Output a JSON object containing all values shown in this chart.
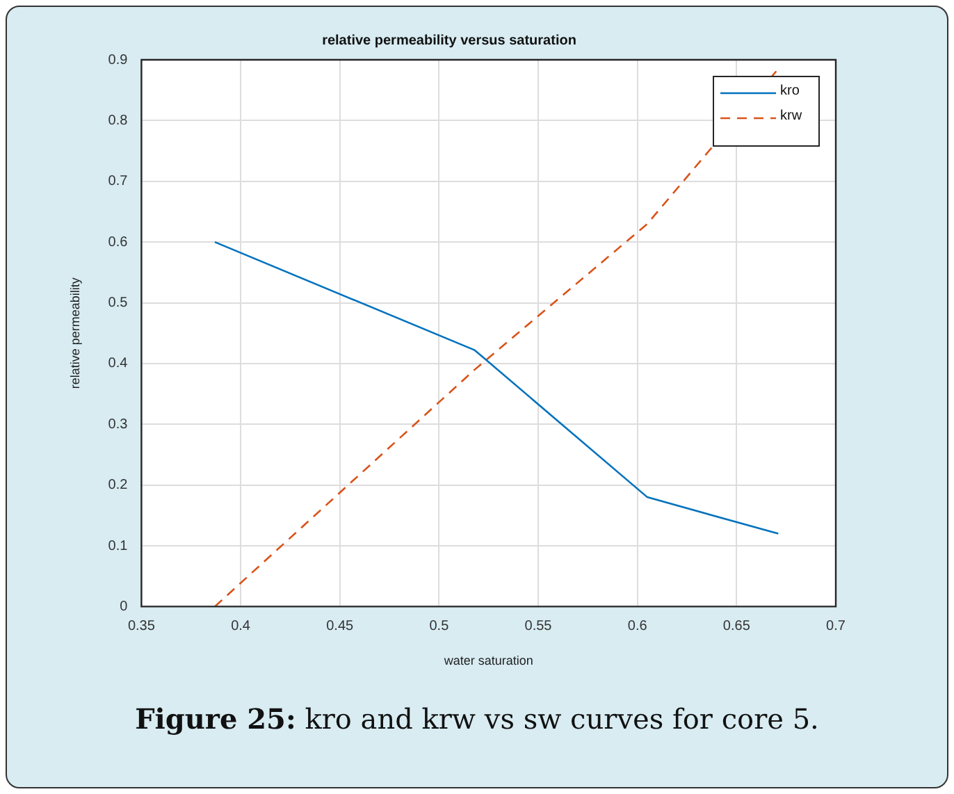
{
  "chart_data": {
    "type": "line",
    "title": "relative permeability versus saturation",
    "xlabel": "water saturation",
    "ylabel": "relative permeability",
    "xlim": [
      0.35,
      0.7
    ],
    "xticks": [
      0.35,
      0.4,
      0.45,
      0.5,
      0.55,
      0.6,
      0.65,
      0.7
    ],
    "ylim": [
      0,
      0.9
    ],
    "yticks": [
      0,
      0.1,
      0.2,
      0.3,
      0.4,
      0.5,
      0.6,
      0.7,
      0.8,
      0.9
    ],
    "grid": true,
    "legend": "top right",
    "marker": "none",
    "series": [
      {
        "name": "kro",
        "color": "#0072bd",
        "line_style": "solid",
        "x": [
          0.387,
          0.518,
          0.605,
          0.671
        ],
        "values": [
          0.6,
          0.422,
          0.18,
          0.12
        ]
      },
      {
        "name": "krw",
        "color": "#d95319",
        "line_style": "dashed",
        "x": [
          0.387,
          0.518,
          0.605,
          0.671
        ],
        "values": [
          0,
          0.39,
          0.63,
          0.885
        ]
      }
    ],
    "annotations": [
      "Figure 25: kro and krw vs sw curves for core 5."
    ]
  }
}
